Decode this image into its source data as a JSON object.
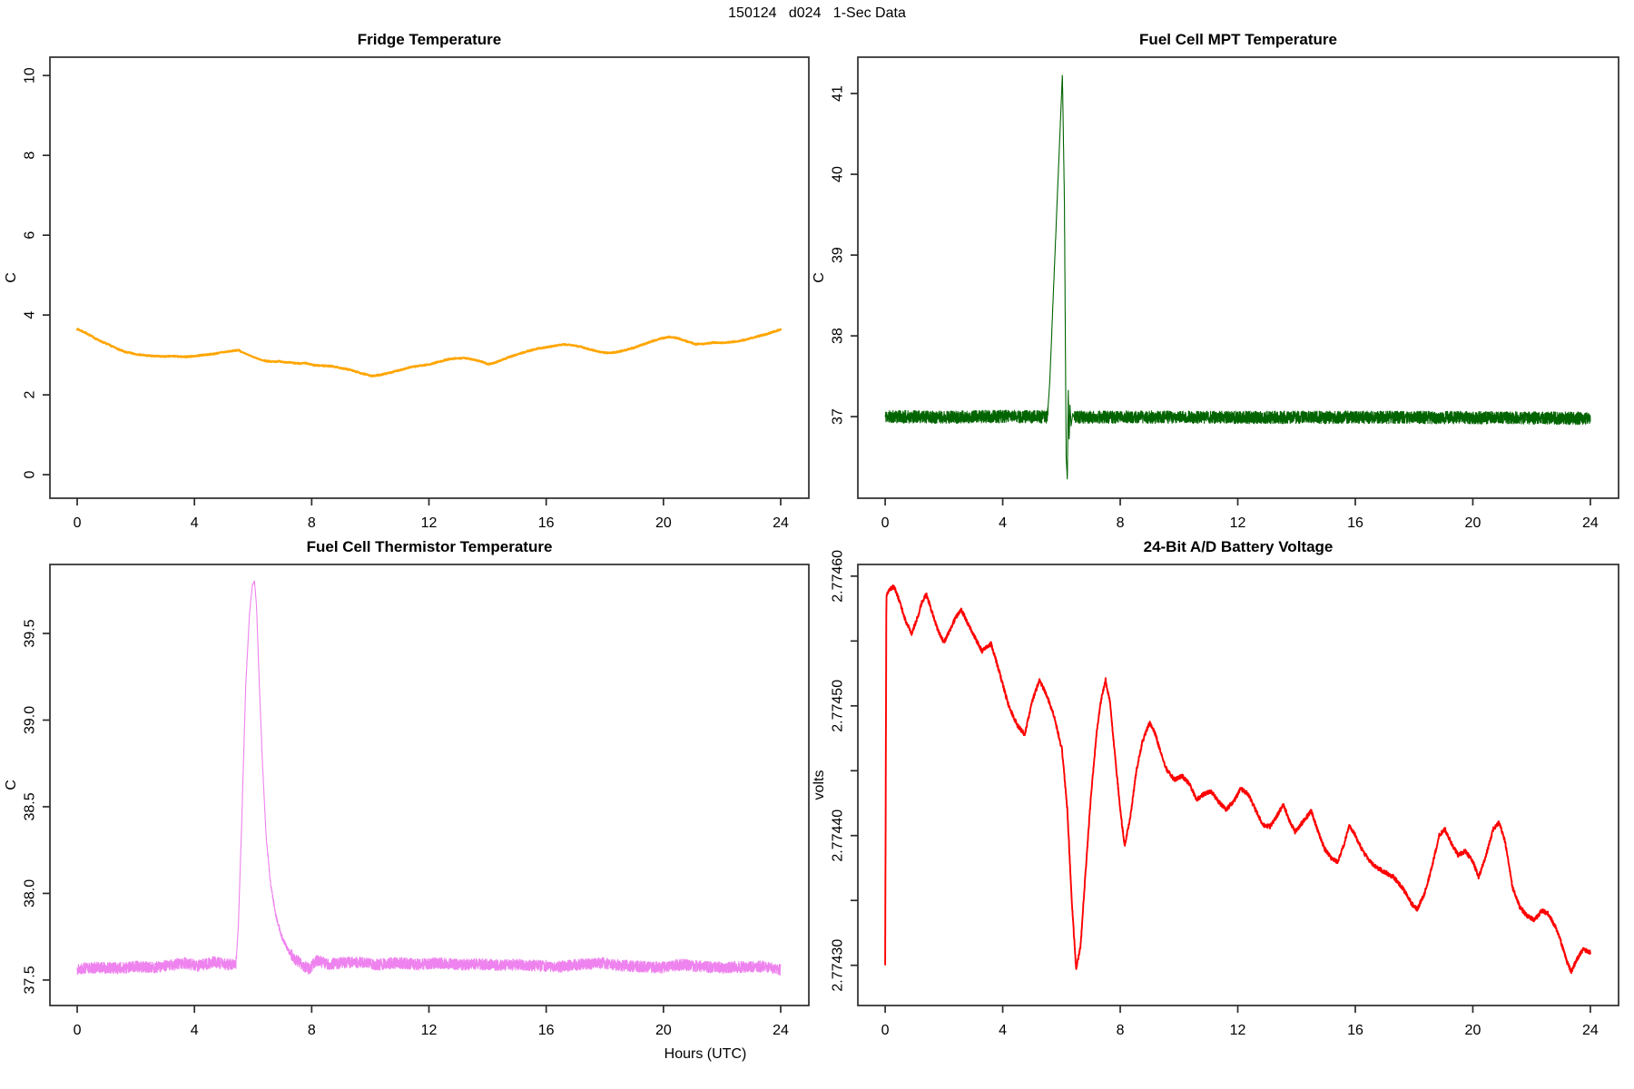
{
  "figure_title": "150124   d024   1-Sec Data",
  "x_axis_label": "Hours (UTC)",
  "chart_data": [
    {
      "id": "fridge-temperature",
      "type": "line",
      "title": "Fridge Temperature",
      "ylabel": "C",
      "color": "#FFA500",
      "line_width": 2.4,
      "xrange": [
        -0.93,
        24.96
      ],
      "yrange": [
        -0.59,
        10.46
      ],
      "xticks": [
        [
          0,
          "0"
        ],
        [
          4,
          "4"
        ],
        [
          8,
          "8"
        ],
        [
          12,
          "12"
        ],
        [
          16,
          "16"
        ],
        [
          20,
          "20"
        ],
        [
          24,
          "24"
        ]
      ],
      "yticks": [
        [
          0,
          "0"
        ],
        [
          2,
          "2"
        ],
        [
          4,
          "4"
        ],
        [
          6,
          "6"
        ],
        [
          8,
          "8"
        ],
        [
          10,
          "10"
        ]
      ],
      "noise": 0.014,
      "noise_regions": [
        [
          5.6,
          6.35,
          0.003
        ]
      ],
      "samples": 1600,
      "seed": 7,
      "anchors": [
        [
          0,
          3.65
        ],
        [
          0.3,
          3.55
        ],
        [
          0.7,
          3.38
        ],
        [
          1,
          3.28
        ],
        [
          1.3,
          3.18
        ],
        [
          1.6,
          3.08
        ],
        [
          2,
          3.02
        ],
        [
          2.3,
          2.99
        ],
        [
          2.6,
          2.97
        ],
        [
          3,
          2.96
        ],
        [
          3.3,
          2.97
        ],
        [
          3.6,
          2.95
        ],
        [
          4,
          2.97
        ],
        [
          4.3,
          3.0
        ],
        [
          4.6,
          3.02
        ],
        [
          5,
          3.07
        ],
        [
          5.3,
          3.1
        ],
        [
          5.5,
          3.12
        ],
        [
          5.6,
          3.08
        ],
        [
          6,
          2.95
        ],
        [
          6.3,
          2.87
        ],
        [
          6.6,
          2.83
        ],
        [
          6.9,
          2.84
        ],
        [
          7.2,
          2.81
        ],
        [
          7.5,
          2.79
        ],
        [
          7.8,
          2.79
        ],
        [
          8.1,
          2.74
        ],
        [
          8.4,
          2.73
        ],
        [
          8.7,
          2.72
        ],
        [
          9,
          2.67
        ],
        [
          9.3,
          2.63
        ],
        [
          9.6,
          2.56
        ],
        [
          9.9,
          2.5
        ],
        [
          10.1,
          2.47
        ],
        [
          10.4,
          2.51
        ],
        [
          10.7,
          2.56
        ],
        [
          11,
          2.62
        ],
        [
          11.3,
          2.68
        ],
        [
          11.6,
          2.72
        ],
        [
          12,
          2.76
        ],
        [
          12.3,
          2.82
        ],
        [
          12.6,
          2.88
        ],
        [
          12.9,
          2.91
        ],
        [
          13.2,
          2.92
        ],
        [
          13.5,
          2.89
        ],
        [
          13.8,
          2.83
        ],
        [
          14,
          2.77
        ],
        [
          14.2,
          2.79
        ],
        [
          14.5,
          2.88
        ],
        [
          14.8,
          2.96
        ],
        [
          15.1,
          3.03
        ],
        [
          15.4,
          3.1
        ],
        [
          15.7,
          3.16
        ],
        [
          16,
          3.19
        ],
        [
          16.3,
          3.23
        ],
        [
          16.6,
          3.26
        ],
        [
          16.9,
          3.25
        ],
        [
          17.2,
          3.2
        ],
        [
          17.5,
          3.14
        ],
        [
          17.8,
          3.08
        ],
        [
          18.1,
          3.05
        ],
        [
          18.4,
          3.07
        ],
        [
          18.7,
          3.12
        ],
        [
          19,
          3.18
        ],
        [
          19.3,
          3.26
        ],
        [
          19.6,
          3.34
        ],
        [
          19.9,
          3.41
        ],
        [
          20.2,
          3.45
        ],
        [
          20.5,
          3.42
        ],
        [
          20.8,
          3.34
        ],
        [
          21.1,
          3.27
        ],
        [
          21.4,
          3.28
        ],
        [
          21.7,
          3.31
        ],
        [
          22,
          3.3
        ],
        [
          22.3,
          3.32
        ],
        [
          22.6,
          3.35
        ],
        [
          22.9,
          3.4
        ],
        [
          23.2,
          3.46
        ],
        [
          23.5,
          3.52
        ],
        [
          23.8,
          3.59
        ],
        [
          24,
          3.64
        ]
      ]
    },
    {
      "id": "fuel-cell-mpt-temperature",
      "type": "line",
      "title": "Fuel Cell MPT Temperature",
      "ylabel": "C",
      "color": "#006400",
      "line_width": 1.1,
      "xrange": [
        -0.93,
        24.96
      ],
      "yrange": [
        35.99,
        41.45
      ],
      "xticks": [
        [
          0,
          "0"
        ],
        [
          4,
          "4"
        ],
        [
          8,
          "8"
        ],
        [
          12,
          "12"
        ],
        [
          16,
          "16"
        ],
        [
          20,
          "20"
        ],
        [
          24,
          "24"
        ]
      ],
      "yticks": [
        [
          37,
          "37"
        ],
        [
          38,
          "38"
        ],
        [
          39,
          "39"
        ],
        [
          40,
          "40"
        ],
        [
          41,
          "41"
        ]
      ],
      "noise": 0.078,
      "noise_regions": [
        [
          5.54,
          6.44,
          0.012
        ]
      ],
      "samples": 5200,
      "seed": 11,
      "anchors": [
        [
          0,
          37.0
        ],
        [
          2,
          36.995
        ],
        [
          4,
          37.002
        ],
        [
          5.52,
          36.998
        ],
        [
          5.6,
          37.42
        ],
        [
          6.03,
          41.24
        ],
        [
          6.1,
          39.7
        ],
        [
          6.16,
          36.5
        ],
        [
          6.2,
          36.22
        ],
        [
          6.23,
          37.35
        ],
        [
          6.26,
          36.68
        ],
        [
          6.29,
          37.14
        ],
        [
          6.33,
          36.88
        ],
        [
          6.38,
          37.03
        ],
        [
          6.45,
          36.99
        ],
        [
          8,
          36.995
        ],
        [
          12,
          36.99
        ],
        [
          16,
          36.992
        ],
        [
          20,
          36.988
        ],
        [
          24,
          36.978
        ]
      ]
    },
    {
      "id": "fuel-cell-thermistor-temperature",
      "type": "line",
      "title": "Fuel Cell Thermistor Temperature",
      "ylabel": "C",
      "color": "#EE82EE",
      "line_width": 1.1,
      "xrange": [
        -0.93,
        24.96
      ],
      "yrange": [
        37.353,
        39.898
      ],
      "xticks": [
        [
          0,
          "0"
        ],
        [
          4,
          "4"
        ],
        [
          8,
          "8"
        ],
        [
          12,
          "12"
        ],
        [
          16,
          "16"
        ],
        [
          20,
          "20"
        ],
        [
          24,
          "24"
        ]
      ],
      "yticks": [
        [
          37.5,
          "37.5"
        ],
        [
          38,
          "38.0"
        ],
        [
          38.5,
          "38.5"
        ],
        [
          39,
          "39.0"
        ],
        [
          39.5,
          "39.5"
        ]
      ],
      "noise": 0.033,
      "noise_regions": [
        [
          5.44,
          6.4,
          0.005
        ],
        [
          6.4,
          7.3,
          0.014
        ]
      ],
      "samples": 5200,
      "seed": 13,
      "anchors": [
        [
          0,
          37.565
        ],
        [
          0.7,
          37.572
        ],
        [
          1.4,
          37.568
        ],
        [
          2,
          37.578
        ],
        [
          2.6,
          37.572
        ],
        [
          3.2,
          37.585
        ],
        [
          3.6,
          37.6
        ],
        [
          4.1,
          37.582
        ],
        [
          4.7,
          37.605
        ],
        [
          5.1,
          37.588
        ],
        [
          5.42,
          37.598
        ],
        [
          5.5,
          37.82
        ],
        [
          5.62,
          38.45
        ],
        [
          5.75,
          39.2
        ],
        [
          5.88,
          39.62
        ],
        [
          5.98,
          39.78
        ],
        [
          6.05,
          39.8
        ],
        [
          6.12,
          39.65
        ],
        [
          6.22,
          39.18
        ],
        [
          6.32,
          38.75
        ],
        [
          6.45,
          38.32
        ],
        [
          6.6,
          38.05
        ],
        [
          6.78,
          37.87
        ],
        [
          6.98,
          37.75
        ],
        [
          7.2,
          37.67
        ],
        [
          7.45,
          37.62
        ],
        [
          7.7,
          37.585
        ],
        [
          7.9,
          37.565
        ],
        [
          8.2,
          37.615
        ],
        [
          8.5,
          37.592
        ],
        [
          9,
          37.598
        ],
        [
          9.6,
          37.603
        ],
        [
          10.2,
          37.588
        ],
        [
          10.9,
          37.6
        ],
        [
          11.6,
          37.59
        ],
        [
          12.3,
          37.598
        ],
        [
          13,
          37.588
        ],
        [
          13.7,
          37.592
        ],
        [
          14.4,
          37.585
        ],
        [
          15.1,
          37.59
        ],
        [
          15.8,
          37.582
        ],
        [
          16.5,
          37.578
        ],
        [
          17.2,
          37.59
        ],
        [
          17.9,
          37.598
        ],
        [
          18.5,
          37.585
        ],
        [
          19.2,
          37.578
        ],
        [
          19.9,
          37.572
        ],
        [
          20.6,
          37.588
        ],
        [
          21.3,
          37.578
        ],
        [
          22,
          37.572
        ],
        [
          22.7,
          37.576
        ],
        [
          23.4,
          37.578
        ],
        [
          24,
          37.558
        ]
      ]
    },
    {
      "id": "battery-voltage",
      "type": "line",
      "title": "24-Bit A/D Battery Voltage",
      "ylabel": "volts",
      "color": "#FF0000",
      "line_width": 1.9,
      "xrange": [
        -0.93,
        24.96
      ],
      "yrange": [
        2.774269,
        2.774609
      ],
      "xticks": [
        [
          0,
          "0"
        ],
        [
          4,
          "4"
        ],
        [
          8,
          "8"
        ],
        [
          12,
          "12"
        ],
        [
          16,
          "16"
        ],
        [
          20,
          "20"
        ],
        [
          24,
          "24"
        ]
      ],
      "yticks": [
        [
          2.7743,
          "2.77430"
        ],
        [
          2.77435,
          ""
        ],
        [
          2.7744,
          "2.77440"
        ],
        [
          2.77445,
          ""
        ],
        [
          2.7745,
          "2.77450"
        ],
        [
          2.77455,
          ""
        ],
        [
          2.7746,
          "2.77460"
        ]
      ],
      "noise": 1.6e-06,
      "noise_regions": [],
      "samples": 3200,
      "seed": 17,
      "anchors": [
        [
          0,
          2.7743
        ],
        [
          0.04,
          2.774585
        ],
        [
          0.15,
          2.77459
        ],
        [
          0.3,
          2.774592
        ],
        [
          0.5,
          2.77458
        ],
        [
          0.7,
          2.774565
        ],
        [
          0.9,
          2.774556
        ],
        [
          1.1,
          2.774568
        ],
        [
          1.25,
          2.77458
        ],
        [
          1.4,
          2.774586
        ],
        [
          1.6,
          2.774572
        ],
        [
          1.8,
          2.774558
        ],
        [
          2,
          2.774549
        ],
        [
          2.2,
          2.774558
        ],
        [
          2.4,
          2.774568
        ],
        [
          2.6,
          2.774574
        ],
        [
          2.8,
          2.774564
        ],
        [
          3,
          2.774555
        ],
        [
          3.3,
          2.774542
        ],
        [
          3.6,
          2.774548
        ],
        [
          3.9,
          2.774525
        ],
        [
          4.2,
          2.7745
        ],
        [
          4.5,
          2.774485
        ],
        [
          4.75,
          2.774478
        ],
        [
          5,
          2.774503
        ],
        [
          5.25,
          2.77452
        ],
        [
          5.5,
          2.774508
        ],
        [
          5.75,
          2.774492
        ],
        [
          6.02,
          2.774466
        ],
        [
          6.2,
          2.77442
        ],
        [
          6.35,
          2.77435
        ],
        [
          6.5,
          2.774297
        ],
        [
          6.65,
          2.774315
        ],
        [
          6.8,
          2.774365
        ],
        [
          7,
          2.77443
        ],
        [
          7.2,
          2.77448
        ],
        [
          7.35,
          2.774505
        ],
        [
          7.5,
          2.77452
        ],
        [
          7.65,
          2.774503
        ],
        [
          7.85,
          2.774455
        ],
        [
          8,
          2.77442
        ],
        [
          8.15,
          2.774392
        ],
        [
          8.35,
          2.774415
        ],
        [
          8.55,
          2.77445
        ],
        [
          8.75,
          2.774472
        ],
        [
          9,
          2.774487
        ],
        [
          9.2,
          2.774478
        ],
        [
          9.4,
          2.774462
        ],
        [
          9.6,
          2.77445
        ],
        [
          9.85,
          2.774443
        ],
        [
          10.1,
          2.774446
        ],
        [
          10.35,
          2.77444
        ],
        [
          10.6,
          2.774428
        ],
        [
          10.85,
          2.774432
        ],
        [
          11.1,
          2.774434
        ],
        [
          11.35,
          2.774426
        ],
        [
          11.6,
          2.77442
        ],
        [
          11.85,
          2.774426
        ],
        [
          12.1,
          2.774436
        ],
        [
          12.35,
          2.774432
        ],
        [
          12.6,
          2.77442
        ],
        [
          12.85,
          2.774408
        ],
        [
          13.1,
          2.774407
        ],
        [
          13.35,
          2.774416
        ],
        [
          13.55,
          2.774424
        ],
        [
          13.75,
          2.774412
        ],
        [
          13.95,
          2.774403
        ],
        [
          14.2,
          2.77441
        ],
        [
          14.5,
          2.774419
        ],
        [
          14.7,
          2.774405
        ],
        [
          14.95,
          2.77439
        ],
        [
          15.2,
          2.774382
        ],
        [
          15.4,
          2.77438
        ],
        [
          15.6,
          2.774392
        ],
        [
          15.8,
          2.774408
        ],
        [
          16,
          2.7744
        ],
        [
          16.25,
          2.774388
        ],
        [
          16.5,
          2.77438
        ],
        [
          16.75,
          2.774375
        ],
        [
          17,
          2.774372
        ],
        [
          17.3,
          2.774368
        ],
        [
          17.6,
          2.77436
        ],
        [
          17.9,
          2.774348
        ],
        [
          18.1,
          2.774343
        ],
        [
          18.35,
          2.774355
        ],
        [
          18.6,
          2.774375
        ],
        [
          18.85,
          2.7744
        ],
        [
          19.05,
          2.774405
        ],
        [
          19.25,
          2.774395
        ],
        [
          19.5,
          2.774385
        ],
        [
          19.75,
          2.774388
        ],
        [
          20,
          2.77438
        ],
        [
          20.2,
          2.774368
        ],
        [
          20.45,
          2.774385
        ],
        [
          20.7,
          2.774405
        ],
        [
          20.9,
          2.77441
        ],
        [
          21.1,
          2.774395
        ],
        [
          21.35,
          2.77436
        ],
        [
          21.6,
          2.774345
        ],
        [
          21.85,
          2.774338
        ],
        [
          22.1,
          2.774335
        ],
        [
          22.35,
          2.774342
        ],
        [
          22.55,
          2.77434
        ],
        [
          22.8,
          2.77433
        ],
        [
          23,
          2.774318
        ],
        [
          23.2,
          2.774303
        ],
        [
          23.35,
          2.774295
        ],
        [
          23.55,
          2.774305
        ],
        [
          23.75,
          2.774312
        ],
        [
          24,
          2.77431
        ]
      ]
    }
  ]
}
